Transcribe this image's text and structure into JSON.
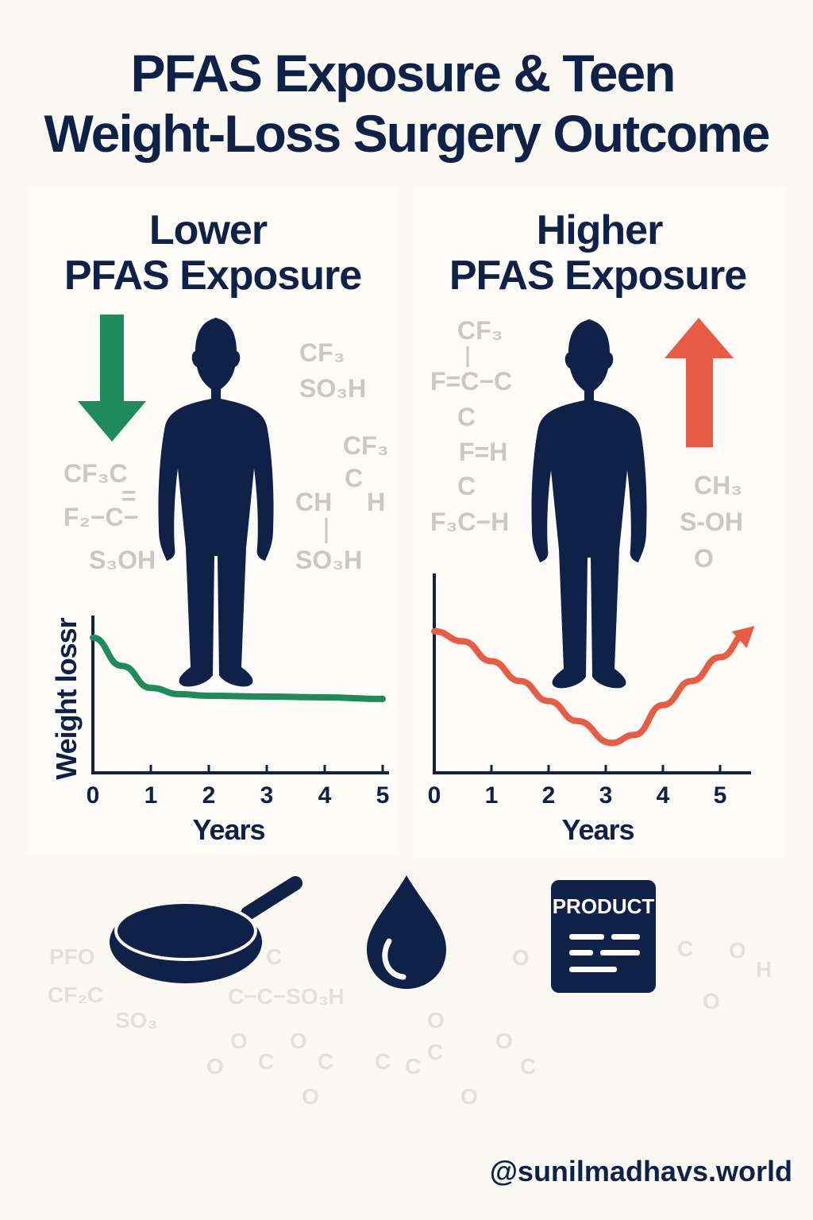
{
  "title": {
    "line1": "PFAS Exposure & Teen",
    "line2": "Weight-Loss Surgery Outcome"
  },
  "colors": {
    "navy": "#0f2147",
    "green": "#1f8a5b",
    "red": "#e85c45",
    "chem_gray": "#c9c8c4",
    "background": "#fbf9f3"
  },
  "left_panel": {
    "title_line1": "Lower",
    "title_line2": "PFAS Exposure",
    "arrow": "arrow-down-icon",
    "chem": [
      "CF₃",
      "SO₃H",
      "CF₃C",
      "=",
      "F₂−C−",
      "S₃OH",
      "CF₃",
      "C",
      "CH",
      "H",
      "SO₃H"
    ]
  },
  "right_panel": {
    "title_line1": "Higher",
    "title_line2": "PFAS Exposure",
    "arrow": "arrow-up-icon",
    "chem": [
      "CF₃",
      "F=C−C",
      "C",
      "F=H",
      "C",
      "F₃C−H",
      "CH₃",
      "S-OH",
      "O"
    ]
  },
  "bottom": {
    "icons": [
      "frying-pan-icon",
      "water-drop-icon",
      "product-label-icon"
    ],
    "product_label": "PRODUCT",
    "chem": [
      "PFO",
      "CF₂C",
      "SO₃",
      "C",
      "C−C−SO₃H",
      "O",
      "O",
      "C",
      "O",
      "C",
      "O",
      "C",
      "C",
      "O",
      "C",
      "O",
      "O",
      "C",
      "O",
      "C",
      "O",
      "H",
      "O"
    ]
  },
  "handle": "@sunilmadhavs.world",
  "chart_data": [
    {
      "type": "line",
      "title": "",
      "xlabel": "Years",
      "ylabel": "Weight lossr",
      "x_ticks": [
        "0",
        "1",
        "2",
        "3",
        "4",
        "5"
      ],
      "xlim": [
        0,
        5
      ],
      "ylim": [
        0,
        1
      ],
      "y_ticks_shown": false,
      "grid": false,
      "color": "#1f8a5b",
      "x": [
        0,
        0.5,
        1,
        1.5,
        2,
        3,
        4,
        5
      ],
      "y": [
        0.86,
        0.68,
        0.54,
        0.5,
        0.49,
        0.485,
        0.48,
        0.47
      ]
    },
    {
      "type": "line",
      "title": "",
      "xlabel": "Years",
      "ylabel": "",
      "x_ticks": [
        "0",
        "1",
        "2",
        "3",
        "4",
        "5"
      ],
      "xlim": [
        0,
        5.5
      ],
      "ylim": [
        0,
        1
      ],
      "y_ticks_shown": false,
      "grid": false,
      "color": "#e85c45",
      "arrow_end": true,
      "x": [
        0,
        0.5,
        1,
        1.5,
        2,
        2.5,
        3.1,
        3.5,
        4,
        4.5,
        5,
        5.5
      ],
      "y": [
        0.71,
        0.66,
        0.56,
        0.46,
        0.36,
        0.26,
        0.15,
        0.19,
        0.34,
        0.46,
        0.58,
        0.71
      ]
    }
  ]
}
